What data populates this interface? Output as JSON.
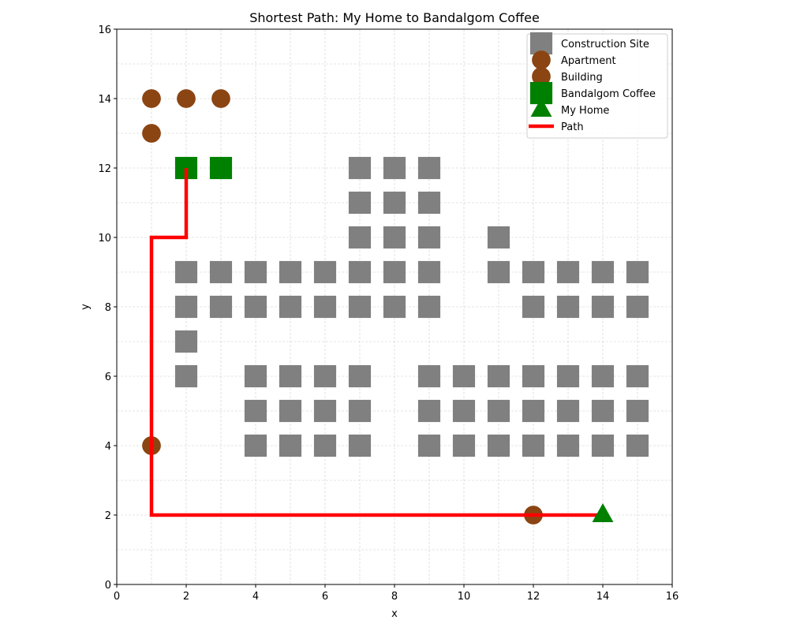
{
  "chart_data": {
    "type": "scatter",
    "title": "Shortest Path: My Home to Bandalgom Coffee",
    "xlabel": "x",
    "ylabel": "y",
    "xlim": [
      0,
      16
    ],
    "ylim": [
      0,
      16
    ],
    "xticks": [
      0,
      2,
      4,
      6,
      8,
      10,
      12,
      14,
      16
    ],
    "yticks": [
      0,
      2,
      4,
      6,
      8,
      10,
      12,
      14,
      16
    ],
    "grid": true,
    "grid_step": 1,
    "legend_position": "top-right",
    "series": [
      {
        "name": "Construction Site",
        "marker": "square",
        "color": "#808080",
        "points": [
          [
            7,
            12
          ],
          [
            8,
            12
          ],
          [
            9,
            12
          ],
          [
            7,
            11
          ],
          [
            8,
            11
          ],
          [
            9,
            11
          ],
          [
            7,
            10
          ],
          [
            8,
            10
          ],
          [
            9,
            10
          ],
          [
            11,
            10
          ],
          [
            2,
            9
          ],
          [
            3,
            9
          ],
          [
            4,
            9
          ],
          [
            5,
            9
          ],
          [
            6,
            9
          ],
          [
            7,
            9
          ],
          [
            8,
            9
          ],
          [
            9,
            9
          ],
          [
            11,
            9
          ],
          [
            12,
            9
          ],
          [
            13,
            9
          ],
          [
            14,
            9
          ],
          [
            15,
            9
          ],
          [
            2,
            8
          ],
          [
            3,
            8
          ],
          [
            4,
            8
          ],
          [
            5,
            8
          ],
          [
            6,
            8
          ],
          [
            7,
            8
          ],
          [
            8,
            8
          ],
          [
            9,
            8
          ],
          [
            12,
            8
          ],
          [
            13,
            8
          ],
          [
            14,
            8
          ],
          [
            15,
            8
          ],
          [
            2,
            7
          ],
          [
            2,
            6
          ],
          [
            4,
            6
          ],
          [
            5,
            6
          ],
          [
            6,
            6
          ],
          [
            7,
            6
          ],
          [
            9,
            6
          ],
          [
            10,
            6
          ],
          [
            11,
            6
          ],
          [
            12,
            6
          ],
          [
            13,
            6
          ],
          [
            14,
            6
          ],
          [
            15,
            6
          ],
          [
            4,
            5
          ],
          [
            5,
            5
          ],
          [
            6,
            5
          ],
          [
            7,
            5
          ],
          [
            9,
            5
          ],
          [
            10,
            5
          ],
          [
            11,
            5
          ],
          [
            12,
            5
          ],
          [
            13,
            5
          ],
          [
            14,
            5
          ],
          [
            15,
            5
          ],
          [
            4,
            4
          ],
          [
            5,
            4
          ],
          [
            6,
            4
          ],
          [
            7,
            4
          ],
          [
            9,
            4
          ],
          [
            10,
            4
          ],
          [
            11,
            4
          ],
          [
            12,
            4
          ],
          [
            13,
            4
          ],
          [
            14,
            4
          ],
          [
            15,
            4
          ]
        ]
      },
      {
        "name": "Apartment",
        "marker": "circle",
        "color": "#8B4513",
        "points": [
          [
            1,
            14
          ],
          [
            2,
            14
          ],
          [
            3,
            14
          ],
          [
            1,
            13
          ],
          [
            1,
            4
          ],
          [
            12,
            2
          ]
        ]
      },
      {
        "name": "Building",
        "marker": "circle",
        "color": "#8B4513",
        "points": []
      },
      {
        "name": "Bandalgom Coffee",
        "marker": "square",
        "color": "#008000",
        "points": [
          [
            2,
            12
          ],
          [
            3,
            12
          ]
        ]
      },
      {
        "name": "My Home",
        "marker": "triangle",
        "color": "#008000",
        "points": [
          [
            14,
            2
          ]
        ]
      },
      {
        "name": "Path",
        "marker": "line",
        "color": "#FF0000",
        "points": [
          [
            14,
            2
          ],
          [
            1,
            2
          ],
          [
            1,
            10
          ],
          [
            2,
            10
          ],
          [
            2,
            12
          ]
        ]
      }
    ]
  }
}
